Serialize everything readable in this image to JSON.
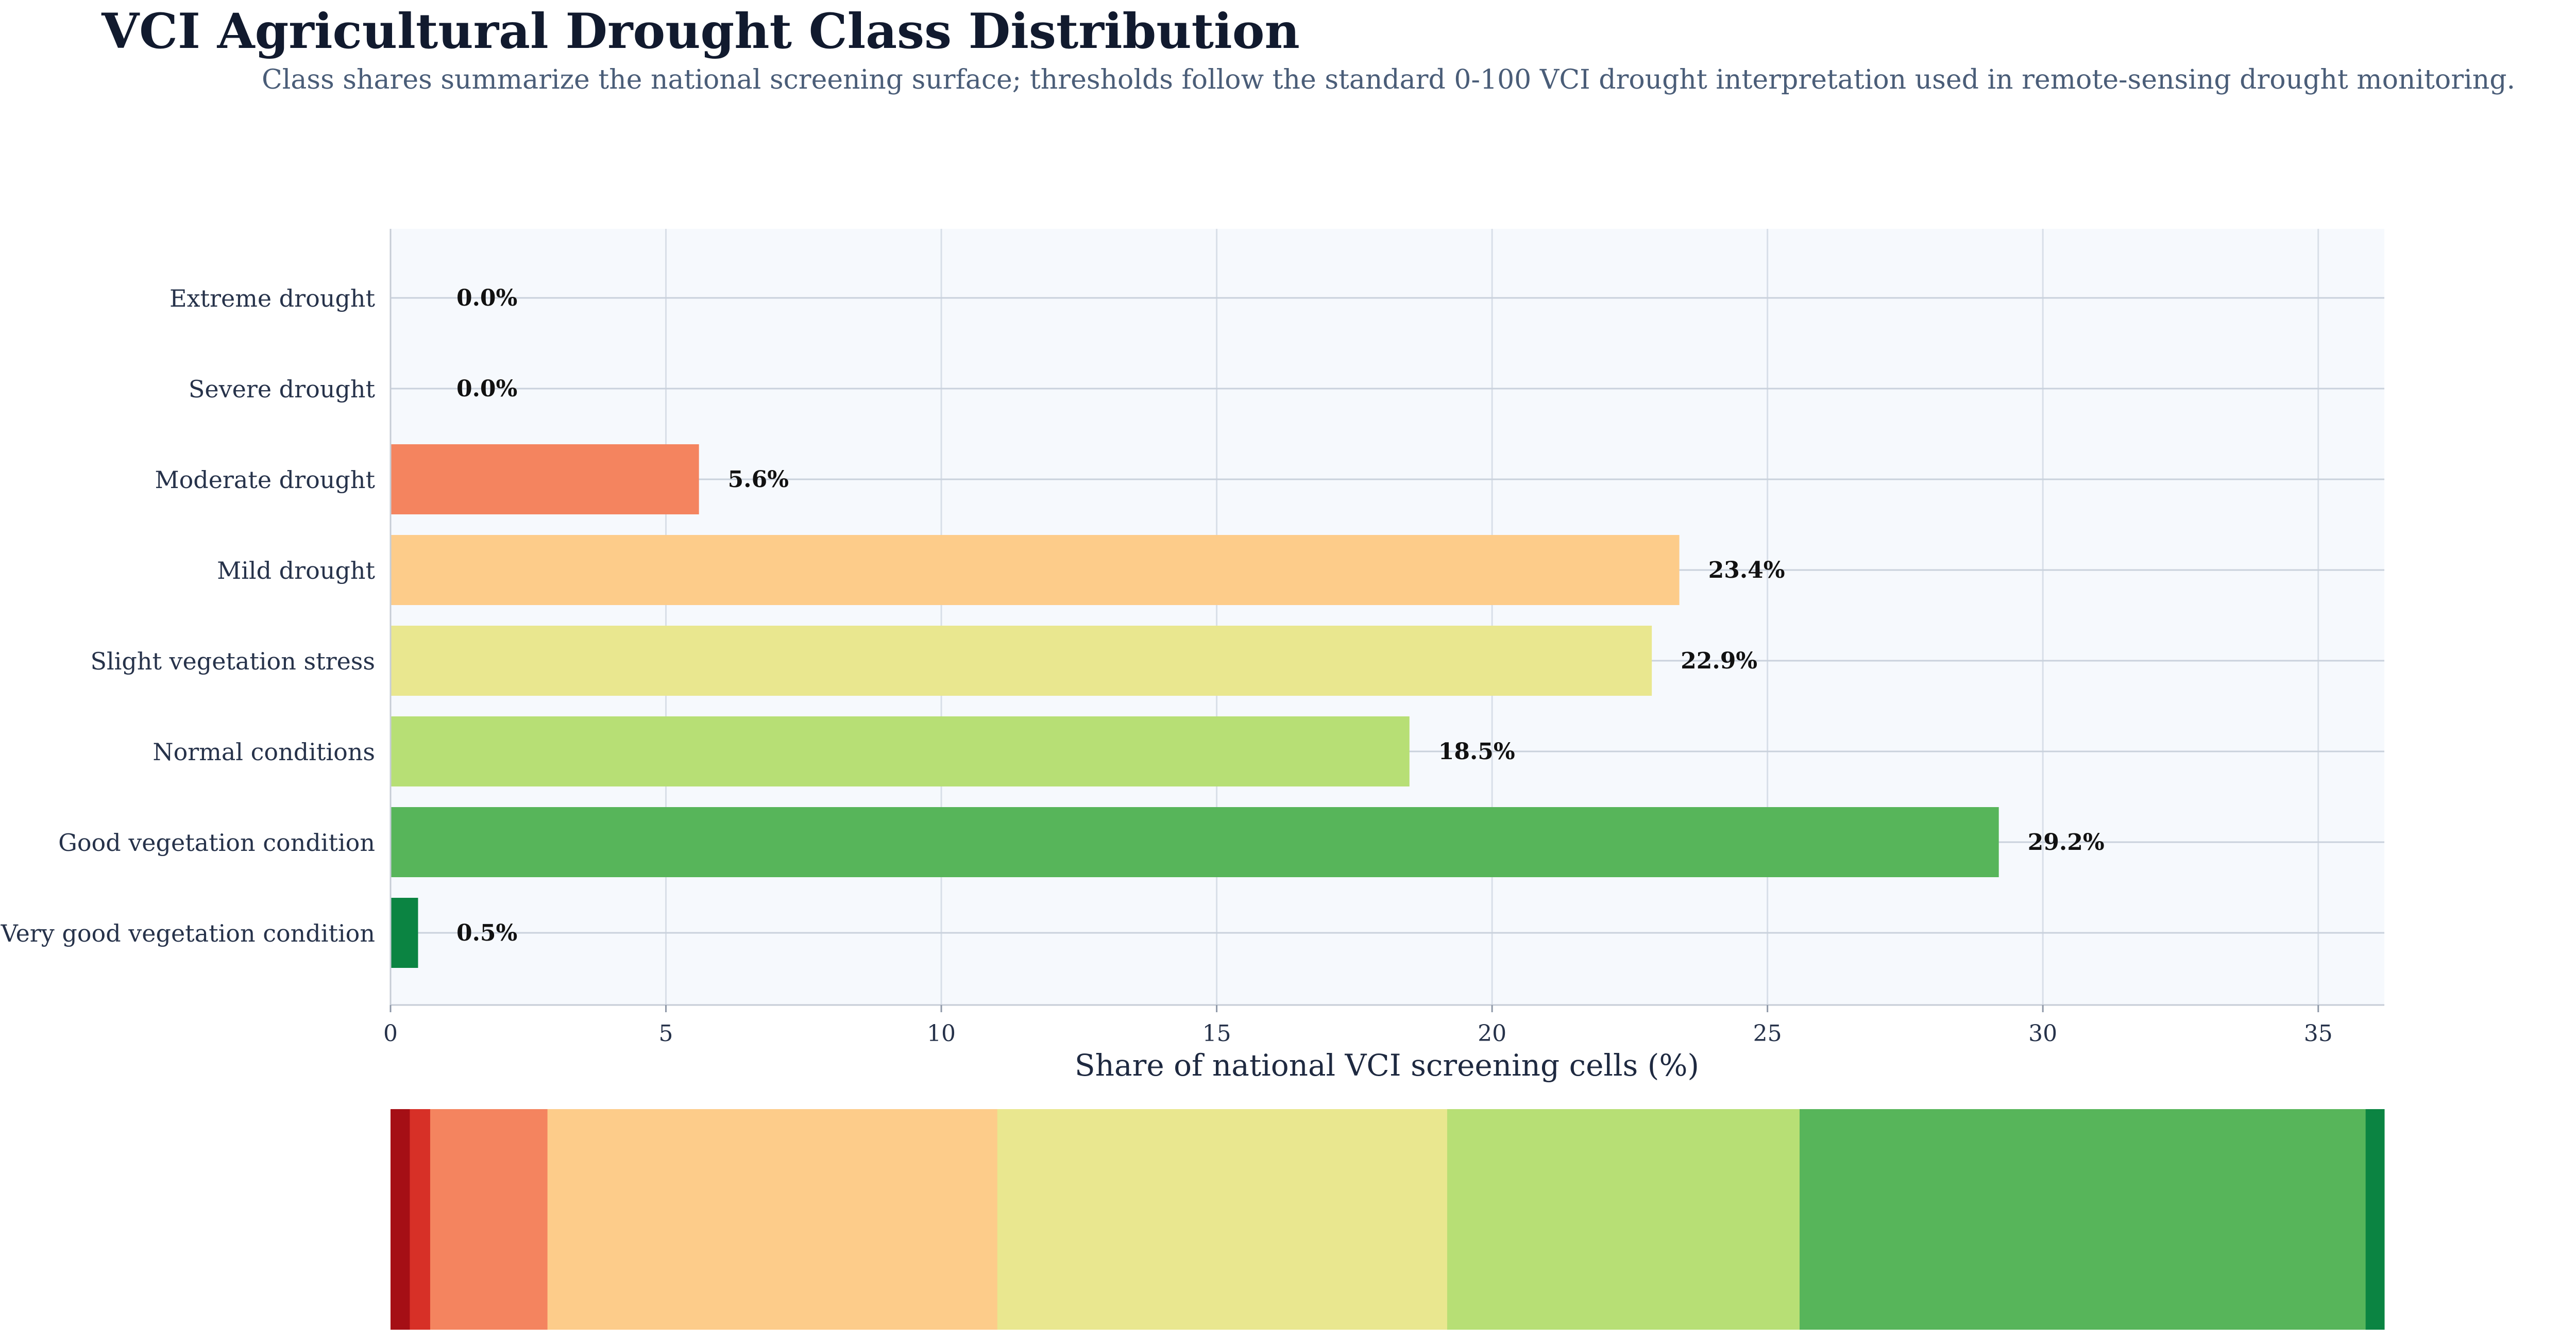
{
  "chart_data": {
    "type": "bar",
    "orientation": "horizontal",
    "title": "VCI Agricultural Drought Class Distribution",
    "subtitle": "Class shares summarize the national screening surface; thresholds follow the standard 0-100 VCI drought interpretation used in remote-sensing drought monitoring.",
    "xlabel": "Share of national VCI screening cells (%)",
    "ylabel": "",
    "xlim": [
      0,
      36.2
    ],
    "xticks": [
      0,
      5,
      10,
      15,
      20,
      25,
      30,
      35
    ],
    "grid": true,
    "categories": [
      "Extreme drought",
      "Severe drought",
      "Moderate drought",
      "Mild drought",
      "Slight vegetation stress",
      "Normal conditions",
      "Good vegetation condition",
      "Very good vegetation condition"
    ],
    "values": [
      0.0,
      0.0,
      5.6,
      23.4,
      22.9,
      18.5,
      29.2,
      0.5
    ],
    "value_labels": [
      "0.0%",
      "0.0%",
      "5.6%",
      "23.4%",
      "22.9%",
      "18.5%",
      "29.2%",
      "0.5%"
    ],
    "colors": [
      "#a50026",
      "#d73027",
      "#f4845f",
      "#fdcc8a",
      "#e9e78f",
      "#b7df75",
      "#57b55a",
      "#0b8442"
    ],
    "composition_strip": {
      "type": "stacked-bar",
      "segments": [
        {
          "color": "#a50f15",
          "value": 0.35
        },
        {
          "color": "#d73027",
          "value": 0.37
        },
        {
          "color": "#f4845f",
          "value": 2.13
        },
        {
          "color": "#fdcc8a",
          "value": 8.17
        },
        {
          "color": "#e9e78f",
          "value": 8.17
        },
        {
          "color": "#b7df75",
          "value": 6.4
        },
        {
          "color": "#57b55a",
          "value": 10.28
        },
        {
          "color": "#0b8442",
          "value": 0.34
        }
      ]
    }
  }
}
